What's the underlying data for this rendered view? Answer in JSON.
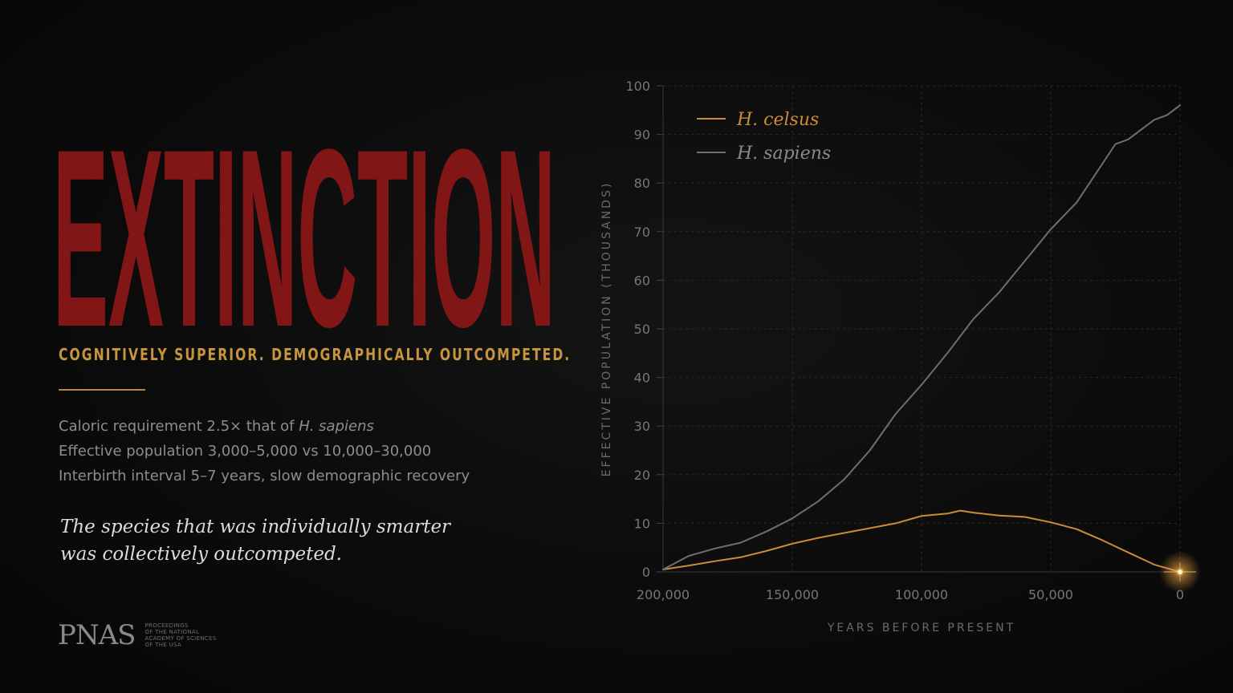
{
  "headline": "EXTINCTION",
  "subtitle": "COGNITIVELY SUPERIOR. DEMOGRAPHICALLY OUTCOMPETED.",
  "facts": {
    "line1_prefix": "Caloric requirement 2.5× that of ",
    "line1_species": "H. sapiens",
    "line2": "Effective population 3,000–5,000 vs 10,000–30,000",
    "line3": "Interbirth interval 5–7 years, slow demographic recovery"
  },
  "quote": {
    "line1": "The species that was individually smarter",
    "line2": "was collectively outcompeted."
  },
  "logo": {
    "wordmark": "PNAS",
    "sub_lines": [
      "PROCEEDINGS",
      "OF THE NATIONAL",
      "ACADEMY OF SCIENCES",
      "OF THE USA"
    ]
  },
  "colors": {
    "headline": "#8e1f1f",
    "accent": "#c8953f",
    "celsus": "#c98d38",
    "sapiens": "#6e6e6e"
  },
  "chart_data": {
    "type": "line",
    "xlabel": "YEARS BEFORE PRESENT",
    "ylabel": "EFFECTIVE POPULATION (THOUSANDS)",
    "xlim": [
      200000,
      0
    ],
    "ylim": [
      0,
      100
    ],
    "x_ticks": [
      200000,
      150000,
      100000,
      50000,
      0
    ],
    "x_tick_labels": [
      "200,000",
      "150,000",
      "100,000",
      "50,000",
      "0"
    ],
    "y_ticks": [
      0,
      10,
      20,
      30,
      40,
      50,
      60,
      70,
      80,
      90,
      100
    ],
    "grid": true,
    "legend_position": "top-left",
    "series": [
      {
        "name": "H. celsus",
        "color": "#c98d38",
        "x": [
          200000,
          190000,
          180000,
          170000,
          160000,
          150000,
          140000,
          130000,
          120000,
          110000,
          100000,
          90000,
          85000,
          80000,
          70000,
          60000,
          50000,
          40000,
          30000,
          20000,
          10000,
          0
        ],
        "y": [
          0.5,
          1.3,
          2.2,
          3.0,
          4.3,
          5.8,
          7.0,
          8.0,
          9.0,
          10.0,
          11.5,
          12.0,
          12.6,
          12.2,
          11.6,
          11.3,
          10.2,
          8.8,
          6.5,
          4.0,
          1.5,
          0
        ]
      },
      {
        "name": "H. sapiens",
        "color": "#6e6e6e",
        "x": [
          200000,
          190000,
          180000,
          170000,
          160000,
          150000,
          140000,
          130000,
          120000,
          110000,
          100000,
          90000,
          80000,
          70000,
          60000,
          50000,
          40000,
          30000,
          25000,
          20000,
          10000,
          5000,
          0
        ],
        "y": [
          0.5,
          3.3,
          4.8,
          6.0,
          8.3,
          11.0,
          14.5,
          19.0,
          25.0,
          32.5,
          38.5,
          45.0,
          52.0,
          57.5,
          64.0,
          70.5,
          76.0,
          84.0,
          88.0,
          89.0,
          93.0,
          94.0,
          96.0
        ]
      }
    ]
  }
}
